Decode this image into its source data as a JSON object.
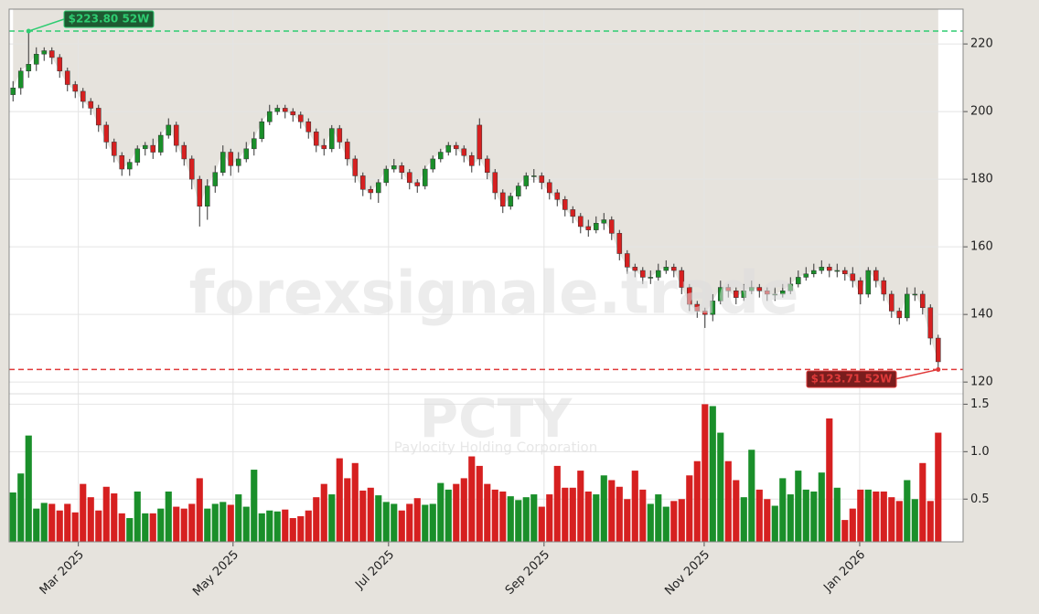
{
  "chart_data": {
    "type": "candlestick",
    "symbol": "PCTY",
    "company": "Paylocity Holding Corporation",
    "watermark": "forexsignale.trade",
    "x": [
      0,
      1,
      2,
      3,
      4,
      5,
      6,
      7,
      8,
      9,
      10,
      11,
      12,
      13,
      14,
      15,
      16,
      17,
      18,
      19,
      20,
      21,
      22,
      23,
      24,
      25,
      26,
      27,
      28,
      29,
      30,
      31,
      32,
      33,
      34,
      35,
      36,
      37,
      38,
      39,
      40,
      41,
      42,
      43,
      44,
      45,
      46,
      47,
      48,
      49,
      50,
      51,
      52,
      53,
      54,
      55,
      56,
      57,
      58,
      59,
      60,
      61,
      62,
      63,
      64,
      65,
      66,
      67,
      68,
      69,
      70,
      71,
      72,
      73,
      74,
      75,
      76,
      77,
      78,
      79,
      80,
      81,
      82,
      83,
      84,
      85,
      86,
      87,
      88,
      89,
      90,
      91,
      92,
      93,
      94,
      95,
      96,
      97,
      98,
      99,
      100,
      101,
      102,
      103,
      104,
      105,
      106,
      107,
      108,
      109,
      110,
      111,
      112,
      113,
      114,
      115,
      116,
      117,
      118,
      119
    ],
    "open": [
      205,
      207,
      212,
      214,
      217,
      218,
      216,
      212,
      208,
      206,
      203,
      201,
      196,
      191,
      187,
      183,
      185,
      189,
      190,
      188,
      193,
      196,
      190,
      186,
      180,
      172,
      178,
      182,
      188,
      184,
      186,
      189,
      192,
      197,
      200,
      201,
      200,
      199,
      197,
      194,
      190,
      189,
      195,
      191,
      186,
      181,
      177,
      176,
      179,
      183,
      184,
      182,
      179,
      178,
      183,
      186,
      188,
      190,
      189,
      187,
      196,
      186,
      182,
      176,
      172,
      175,
      178,
      181,
      181,
      179,
      176,
      174,
      171,
      169,
      166,
      165,
      167,
      168,
      164,
      158,
      154,
      153,
      151,
      151,
      153,
      154,
      153,
      148,
      143,
      141,
      140,
      144,
      148,
      147,
      145,
      147,
      148,
      147,
      146,
      146,
      147,
      149,
      151,
      152,
      153,
      154,
      153,
      153,
      152,
      150,
      146,
      153,
      150,
      146,
      141,
      139,
      146,
      146,
      142,
      133
    ],
    "high": [
      209,
      213,
      223.8,
      219,
      219,
      219,
      217,
      213,
      209,
      207,
      204,
      202,
      197,
      192,
      188,
      186,
      190,
      191,
      192,
      194,
      198,
      197,
      191,
      187,
      181,
      180,
      184,
      190,
      189,
      188,
      191,
      194,
      198,
      202,
      202,
      202,
      201,
      200,
      198,
      195,
      192,
      196,
      196,
      192,
      187,
      182,
      178,
      180,
      184,
      186,
      185,
      183,
      180,
      184,
      187,
      189,
      191,
      191,
      190,
      188,
      198,
      187,
      183,
      177,
      176,
      179,
      182,
      183,
      182,
      180,
      177,
      175,
      172,
      170,
      168,
      169,
      170,
      169,
      165,
      159,
      155,
      154,
      153,
      155,
      156,
      155,
      154,
      149,
      144,
      142,
      146,
      150,
      149,
      148,
      149,
      150,
      149,
      148,
      148,
      149,
      151,
      153,
      154,
      155,
      156,
      155,
      155,
      154,
      154,
      151,
      154,
      154,
      151,
      147,
      142,
      148,
      148,
      147,
      143,
      134
    ],
    "low": [
      203,
      205,
      210,
      212,
      215,
      214,
      210,
      206,
      204,
      201,
      199,
      194,
      189,
      185,
      181,
      181,
      184,
      187,
      186,
      187,
      192,
      188,
      184,
      177,
      166,
      168,
      176,
      181,
      181,
      182,
      185,
      187,
      191,
      196,
      199,
      198,
      197,
      195,
      192,
      188,
      187,
      188,
      189,
      184,
      179,
      175,
      174,
      173,
      178,
      182,
      180,
      177,
      176,
      177,
      182,
      185,
      187,
      187,
      185,
      182,
      184,
      180,
      174,
      170,
      171,
      174,
      177,
      179,
      177,
      174,
      172,
      169,
      167,
      164,
      163,
      164,
      165,
      162,
      156,
      152,
      151,
      149,
      149,
      150,
      152,
      151,
      146,
      141,
      139,
      136,
      138,
      143,
      145,
      143,
      144,
      146,
      145,
      144,
      144,
      145,
      146,
      148,
      150,
      151,
      152,
      151,
      151,
      150,
      148,
      143,
      145,
      148,
      144,
      139,
      137,
      138,
      144,
      140,
      131,
      123.71
    ],
    "close": [
      207,
      212,
      214,
      217,
      218,
      216,
      212,
      208,
      206,
      203,
      201,
      196,
      191,
      187,
      183,
      185,
      189,
      190,
      188,
      193,
      196,
      190,
      186,
      180,
      172,
      178,
      182,
      188,
      184,
      186,
      189,
      192,
      197,
      200,
      201,
      200,
      199,
      197,
      194,
      190,
      189,
      195,
      191,
      186,
      181,
      177,
      176,
      179,
      183,
      184,
      182,
      179,
      178,
      183,
      186,
      188,
      190,
      189,
      187,
      184,
      186,
      182,
      176,
      172,
      175,
      178,
      181,
      181,
      179,
      176,
      174,
      171,
      169,
      166,
      165,
      167,
      168,
      164,
      158,
      154,
      153,
      151,
      151,
      153,
      154,
      153,
      148,
      143,
      141,
      140,
      144,
      148,
      147,
      145,
      147,
      148,
      147,
      146,
      146,
      147,
      149,
      151,
      152,
      153,
      154,
      153,
      153,
      152,
      150,
      146,
      153,
      150,
      146,
      141,
      139,
      146,
      146,
      142,
      133,
      126
    ],
    "volume": [
      0.57,
      0.77,
      1.17,
      0.4,
      0.46,
      0.45,
      0.38,
      0.45,
      0.36,
      0.66,
      0.52,
      0.38,
      0.63,
      0.56,
      0.35,
      0.3,
      0.58,
      0.35,
      0.35,
      0.4,
      0.58,
      0.42,
      0.4,
      0.45,
      0.72,
      0.4,
      0.45,
      0.47,
      0.44,
      0.55,
      0.42,
      0.81,
      0.35,
      0.38,
      0.37,
      0.39,
      0.3,
      0.32,
      0.38,
      0.52,
      0.66,
      0.55,
      0.93,
      0.72,
      0.88,
      0.59,
      0.62,
      0.54,
      0.47,
      0.45,
      0.38,
      0.45,
      0.51,
      0.44,
      0.45,
      0.67,
      0.6,
      0.66,
      0.72,
      0.95,
      0.85,
      0.66,
      0.6,
      0.58,
      0.53,
      0.49,
      0.52,
      0.55,
      0.42,
      0.55,
      0.85,
      0.62,
      0.62,
      0.8,
      0.58,
      0.55,
      0.75,
      0.7,
      0.63,
      0.5,
      0.8,
      0.6,
      0.45,
      0.55,
      0.42,
      0.48,
      0.5,
      0.75,
      0.9,
      1.5,
      1.48,
      1.2,
      0.9,
      0.7,
      0.52,
      1.02,
      0.6,
      0.5,
      0.43,
      0.72,
      0.55,
      0.8,
      0.6,
      0.58,
      0.78,
      1.35,
      0.62,
      0.28,
      0.4,
      0.6,
      0.6,
      0.58,
      0.58,
      0.52,
      0.48,
      0.7,
      0.5,
      0.88,
      0.48,
      1.2
    ],
    "up_color": "#1a8f2a",
    "down_color": "#d62020",
    "xlim": [
      -0.5,
      122.2
    ],
    "xticks": [
      {
        "value": 8.4,
        "label": "Mar 2025"
      },
      {
        "value": 28.3,
        "label": "May 2025"
      },
      {
        "value": 48.3,
        "label": "Jul 2025"
      },
      {
        "value": 68.3,
        "label": "Sep 2025"
      },
      {
        "value": 88.9,
        "label": "Nov 2025"
      },
      {
        "value": 108.9,
        "label": "Jan 2026"
      }
    ],
    "ylim": [
      116.8,
      230.3
    ],
    "yticks": [
      120,
      140,
      160,
      180,
      200,
      220
    ],
    "volume_lim": [
      0.05,
      1.6
    ],
    "volume_ticks": [
      0.5,
      {
        "value": 1,
        "label": "1.0"
      },
      1.5
    ],
    "grid": true,
    "high_line": {
      "value": 223.8,
      "label": "$223.80 52W",
      "x": 2,
      "color": "#2ecc71"
    },
    "low_line": {
      "value": 123.71,
      "label": "$123.71 52W",
      "x": 119,
      "color": "#e03a3a"
    }
  }
}
